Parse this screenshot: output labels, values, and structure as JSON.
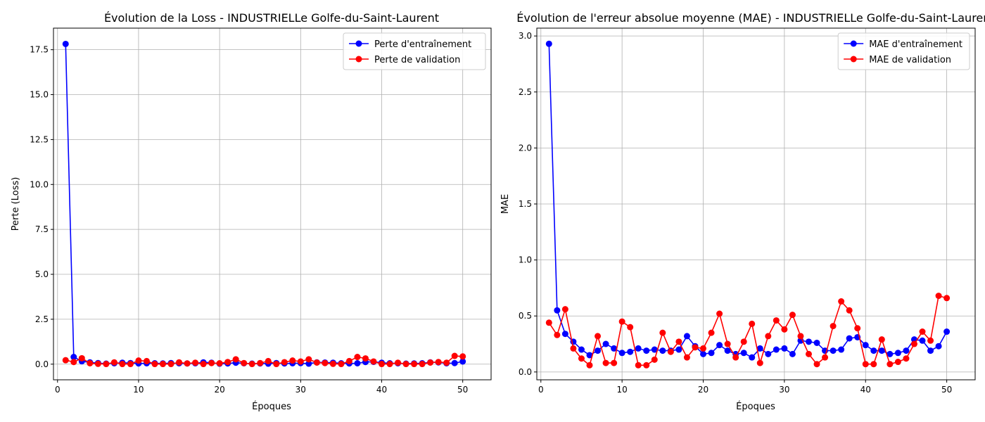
{
  "chart_data": [
    {
      "type": "line",
      "title": "Évolution de la Loss - INDUSTRIELLe Golfe-du-Saint-Laurent",
      "xlabel": "Époques",
      "ylabel": "Perte (Loss)",
      "xlim": [
        -0.5,
        53.5
      ],
      "ylim": [
        -0.87,
        18.7
      ],
      "xticks": [
        0,
        10,
        20,
        30,
        40,
        50
      ],
      "yticks": [
        0.0,
        2.5,
        5.0,
        7.5,
        10.0,
        12.5,
        15.0,
        17.5
      ],
      "ytick_labels": [
        "0.0",
        "2.5",
        "5.0",
        "7.5",
        "10.0",
        "12.5",
        "15.0",
        "17.5"
      ],
      "grid": true,
      "legend_position": "top-right",
      "x": [
        1,
        2,
        3,
        4,
        5,
        6,
        7,
        8,
        9,
        10,
        11,
        12,
        13,
        14,
        15,
        16,
        17,
        18,
        19,
        20,
        21,
        22,
        23,
        24,
        25,
        26,
        27,
        28,
        29,
        30,
        31,
        32,
        33,
        34,
        35,
        36,
        37,
        38,
        39,
        40,
        41,
        42,
        43,
        44,
        45,
        46,
        47,
        48,
        49,
        50
      ],
      "series": [
        {
          "name": "Perte d'entraînement",
          "color": "#0000ff",
          "values": [
            17.82,
            0.4,
            0.16,
            0.1,
            0.06,
            0.03,
            0.05,
            0.08,
            0.06,
            0.04,
            0.05,
            0.05,
            0.04,
            0.06,
            0.05,
            0.04,
            0.05,
            0.1,
            0.08,
            0.03,
            0.04,
            0.08,
            0.05,
            0.03,
            0.04,
            0.03,
            0.06,
            0.04,
            0.05,
            0.06,
            0.03,
            0.1,
            0.09,
            0.08,
            0.05,
            0.04,
            0.05,
            0.12,
            0.13,
            0.08,
            0.05,
            0.05,
            0.03,
            0.04,
            0.05,
            0.1,
            0.1,
            0.05,
            0.06,
            0.15
          ]
        },
        {
          "name": "Perte de validation",
          "color": "#ff0000",
          "values": [
            0.22,
            0.12,
            0.33,
            0.05,
            0.02,
            0.01,
            0.1,
            0.01,
            0.01,
            0.2,
            0.17,
            0.01,
            0.01,
            0.01,
            0.1,
            0.04,
            0.08,
            0.01,
            0.06,
            0.05,
            0.12,
            0.27,
            0.06,
            0.01,
            0.06,
            0.17,
            0.01,
            0.11,
            0.2,
            0.15,
            0.27,
            0.09,
            0.06,
            0.02,
            0.01,
            0.17,
            0.4,
            0.32,
            0.15,
            0.01,
            0.01,
            0.08,
            0.01,
            0.01,
            0.01,
            0.09,
            0.12,
            0.08,
            0.46,
            0.43
          ]
        }
      ]
    },
    {
      "type": "line",
      "title": "Évolution de l'erreur absolue moyenne (MAE) - INDUSTRIELLe Golfe-du-Saint-Laurent",
      "xlabel": "Époques",
      "ylabel": "MAE",
      "xlim": [
        -0.5,
        53.5
      ],
      "ylim": [
        -0.07,
        3.07
      ],
      "xticks": [
        0,
        10,
        20,
        30,
        40,
        50
      ],
      "yticks": [
        0.0,
        0.5,
        1.0,
        1.5,
        2.0,
        2.5,
        3.0
      ],
      "ytick_labels": [
        "0.0",
        "0.5",
        "1.0",
        "1.5",
        "2.0",
        "2.5",
        "3.0"
      ],
      "grid": true,
      "legend_position": "top-right",
      "x": [
        1,
        2,
        3,
        4,
        5,
        6,
        7,
        8,
        9,
        10,
        11,
        12,
        13,
        14,
        15,
        16,
        17,
        18,
        19,
        20,
        21,
        22,
        23,
        24,
        25,
        26,
        27,
        28,
        29,
        30,
        31,
        32,
        33,
        34,
        35,
        36,
        37,
        38,
        39,
        40,
        41,
        42,
        43,
        44,
        45,
        46,
        47,
        48,
        49,
        50
      ],
      "series": [
        {
          "name": "MAE d'entraînement",
          "color": "#0000ff",
          "values": [
            2.93,
            0.55,
            0.34,
            0.27,
            0.2,
            0.15,
            0.19,
            0.25,
            0.21,
            0.17,
            0.18,
            0.21,
            0.19,
            0.2,
            0.19,
            0.19,
            0.2,
            0.32,
            0.23,
            0.16,
            0.17,
            0.24,
            0.19,
            0.16,
            0.17,
            0.13,
            0.21,
            0.16,
            0.2,
            0.21,
            0.16,
            0.28,
            0.27,
            0.26,
            0.19,
            0.19,
            0.2,
            0.3,
            0.31,
            0.24,
            0.19,
            0.19,
            0.16,
            0.17,
            0.19,
            0.29,
            0.28,
            0.19,
            0.23,
            0.36
          ]
        },
        {
          "name": "MAE de validation",
          "color": "#ff0000",
          "values": [
            0.44,
            0.33,
            0.56,
            0.21,
            0.12,
            0.06,
            0.32,
            0.08,
            0.08,
            0.45,
            0.4,
            0.06,
            0.06,
            0.11,
            0.35,
            0.18,
            0.27,
            0.13,
            0.22,
            0.21,
            0.35,
            0.52,
            0.25,
            0.13,
            0.27,
            0.43,
            0.08,
            0.32,
            0.46,
            0.38,
            0.51,
            0.32,
            0.16,
            0.07,
            0.13,
            0.41,
            0.63,
            0.55,
            0.39,
            0.07,
            0.07,
            0.29,
            0.07,
            0.09,
            0.12,
            0.25,
            0.36,
            0.28,
            0.68,
            0.66
          ]
        }
      ]
    }
  ]
}
